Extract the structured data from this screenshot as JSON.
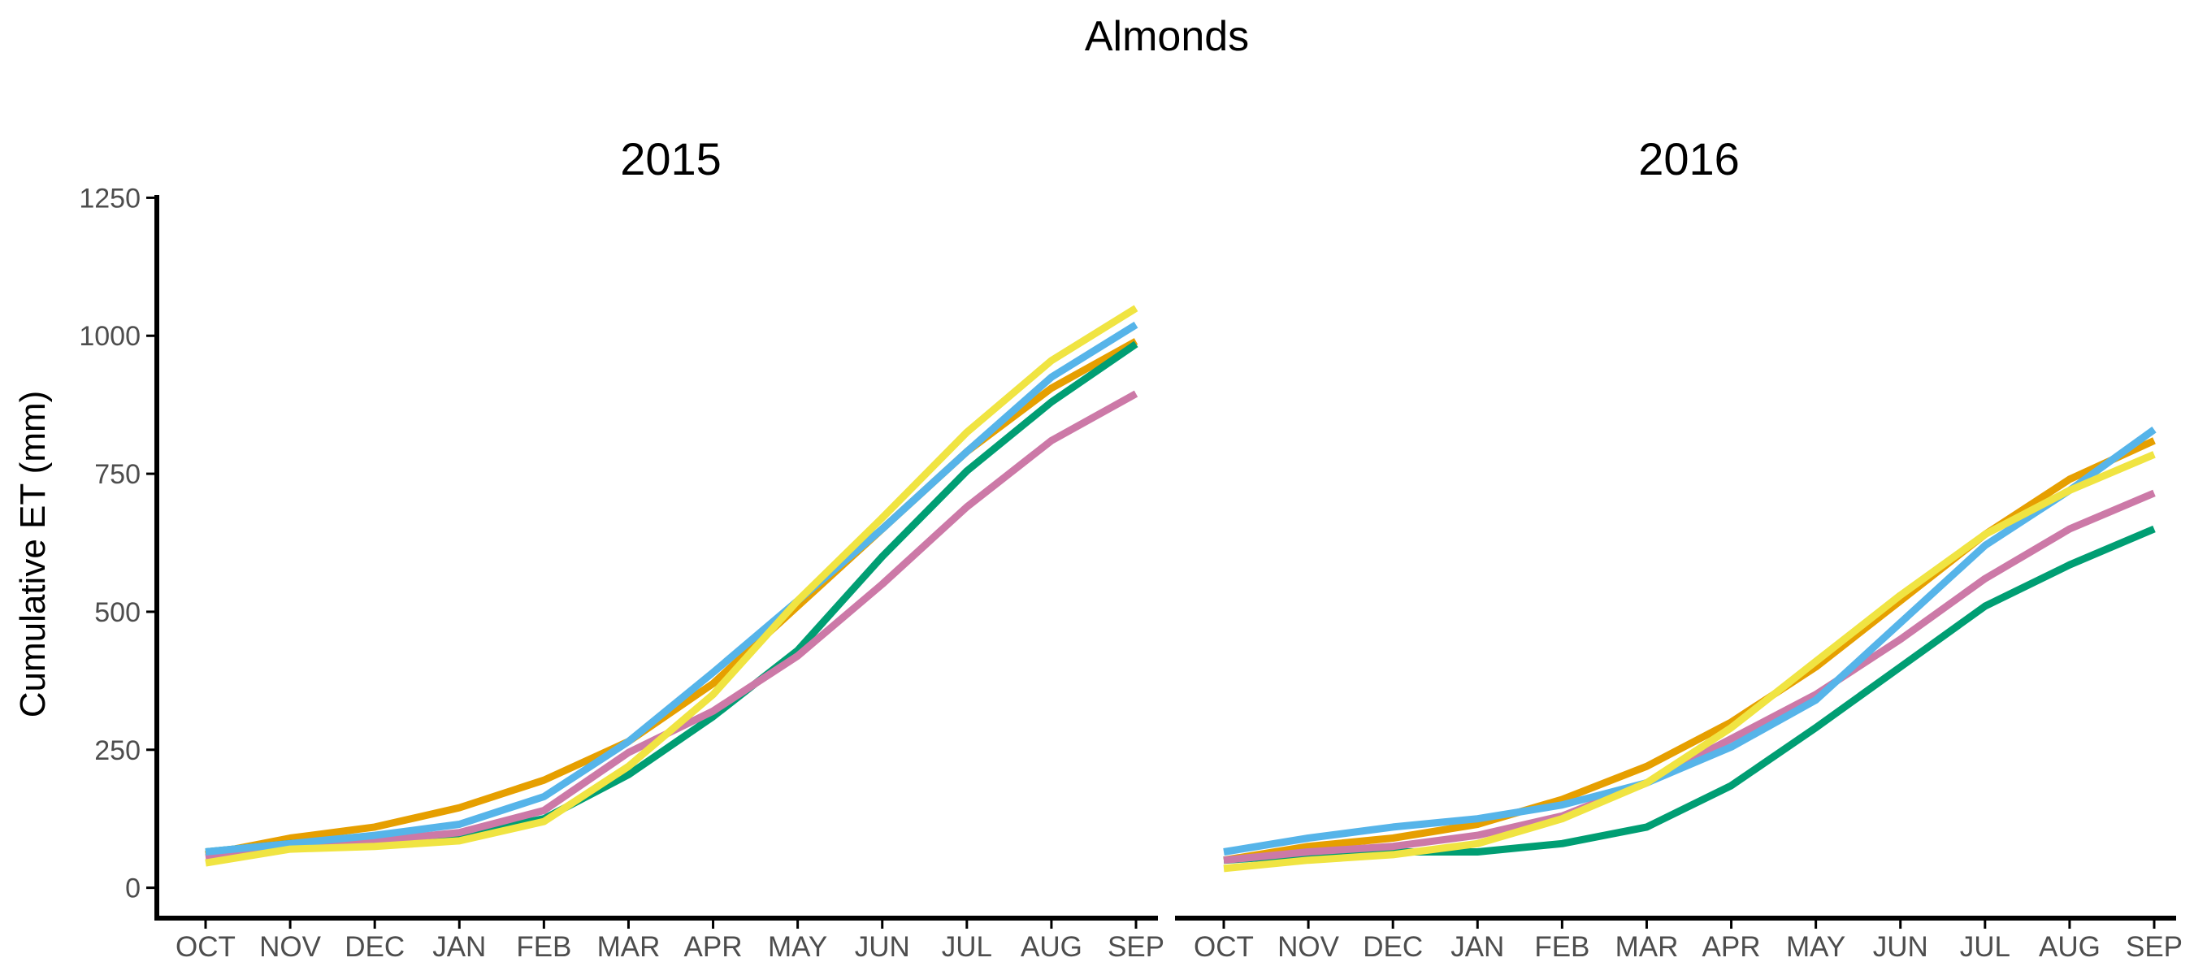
{
  "chart_data": {
    "type": "line",
    "title": "Almonds",
    "ylabel": "Cumulative ET (mm)",
    "xlabel": "",
    "ylim": [
      -55,
      1255
    ],
    "yticks": [
      0,
      250,
      500,
      750,
      1000,
      1250
    ],
    "grid": false,
    "legend": "none",
    "categories": [
      "OCT",
      "NOV",
      "DEC",
      "JAN",
      "FEB",
      "MAR",
      "APR",
      "MAY",
      "JUN",
      "JUL",
      "AUG",
      "SEP"
    ],
    "panels": [
      {
        "facet": "2015",
        "series": [
          {
            "color": "#E69F00",
            "values": [
              60,
              90,
              110,
              145,
              195,
              265,
              370,
              510,
              650,
              790,
              905,
              990
            ]
          },
          {
            "color": "#009E73",
            "values": [
              65,
              80,
              90,
              95,
              125,
              205,
              310,
              430,
              600,
              755,
              880,
              985
            ]
          },
          {
            "color": "#CC79A7",
            "values": [
              55,
              75,
              85,
              100,
              140,
              245,
              320,
              420,
              550,
              690,
              810,
              895
            ]
          },
          {
            "color": "#56B4E9",
            "values": [
              65,
              80,
              95,
              115,
              165,
              265,
              390,
              520,
              650,
              790,
              925,
              1020
            ]
          },
          {
            "color": "#F0E442",
            "values": [
              45,
              70,
              75,
              85,
              120,
              220,
              350,
              520,
              670,
              825,
              955,
              1050
            ]
          }
        ]
      },
      {
        "facet": "2016",
        "series": [
          {
            "color": "#E69F00",
            "values": [
              50,
              75,
              90,
              115,
              160,
              220,
              300,
              400,
              520,
              640,
              740,
              810
            ]
          },
          {
            "color": "#009E73",
            "values": [
              50,
              60,
              65,
              65,
              80,
              110,
              185,
              290,
              400,
              510,
              585,
              650
            ]
          },
          {
            "color": "#CC79A7",
            "values": [
              50,
              65,
              75,
              95,
              130,
              190,
              270,
              350,
              450,
              560,
              650,
              715
            ]
          },
          {
            "color": "#56B4E9",
            "values": [
              65,
              90,
              110,
              125,
              150,
              190,
              255,
              340,
              480,
              620,
              720,
              830
            ]
          },
          {
            "color": "#F0E442",
            "values": [
              35,
              50,
              60,
              80,
              125,
              190,
              290,
              410,
              530,
              640,
              720,
              785
            ]
          }
        ]
      }
    ]
  }
}
